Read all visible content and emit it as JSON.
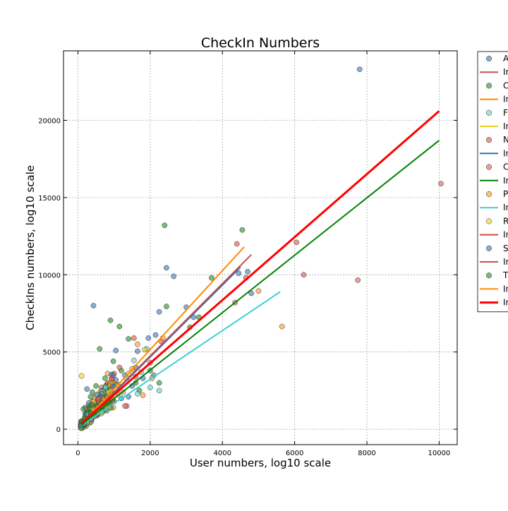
{
  "chart_data": {
    "type": "scatter",
    "title": "CheckIn Numbers",
    "xlabel": "User numbers, log10 scale",
    "ylabel": "CheckIns numbers, log10 scale",
    "xlim": [
      -400,
      10500
    ],
    "ylim": [
      -1000,
      24500
    ],
    "xticks": [
      0,
      2000,
      4000,
      6000,
      8000,
      10000
    ],
    "yticks": [
      0,
      5000,
      10000,
      15000,
      20000
    ],
    "grid": true,
    "legend_position": "upper right, outside plot (clipped)",
    "legend_entries": [
      {
        "label": "A",
        "kind": "marker",
        "color": "#4c7fbf"
      },
      {
        "label": "In",
        "kind": "line",
        "color": "#c8504a"
      },
      {
        "label": "C",
        "kind": "marker",
        "color": "#2e9a2e"
      },
      {
        "label": "In",
        "kind": "line",
        "color": "#ff8c00"
      },
      {
        "label": "Fo",
        "kind": "marker",
        "color": "#6fd6c8"
      },
      {
        "label": "In",
        "kind": "line",
        "color": "#e6d11a"
      },
      {
        "label": "N",
        "kind": "marker",
        "color": "#e0604f"
      },
      {
        "label": "In",
        "kind": "line",
        "color": "#2e6fb0"
      },
      {
        "label": "C",
        "kind": "marker",
        "color": "#d96a6a"
      },
      {
        "label": "In",
        "kind": "line",
        "color": "#008000"
      },
      {
        "label": "P",
        "kind": "marker",
        "color": "#ff9f2e"
      },
      {
        "label": "In",
        "kind": "line",
        "color": "#3fcfcf"
      },
      {
        "label": "R",
        "kind": "marker",
        "color": "#f4d72a"
      },
      {
        "label": "In",
        "kind": "line",
        "color": "#d8473d"
      },
      {
        "label": "S",
        "kind": "marker",
        "color": "#4c7fbf"
      },
      {
        "label": "In",
        "kind": "line",
        "color": "#c8504a"
      },
      {
        "label": "T",
        "kind": "marker",
        "color": "#2e9a2e"
      },
      {
        "label": "In",
        "kind": "line",
        "color": "#ff8c00"
      },
      {
        "label": "In",
        "kind": "line",
        "color": "#ff0000"
      }
    ],
    "fit_lines": [
      {
        "color": "#ff0000",
        "width": 3,
        "x": [
          100,
          10000
        ],
        "y": [
          400,
          20600
        ]
      },
      {
        "color": "#008000",
        "width": 2,
        "x": [
          100,
          10000
        ],
        "y": [
          300,
          18700
        ]
      },
      {
        "color": "#ff8c00",
        "width": 2,
        "x": [
          100,
          4600
        ],
        "y": [
          300,
          11800
        ]
      },
      {
        "color": "#c8504a",
        "width": 2,
        "x": [
          100,
          4800
        ],
        "y": [
          300,
          11300
        ]
      },
      {
        "color": "#2e6fb0",
        "width": 2,
        "x": [
          100,
          4500
        ],
        "y": [
          250,
          10500
        ]
      },
      {
        "color": "#3fcfcf",
        "width": 2,
        "x": [
          100,
          5600
        ],
        "y": [
          250,
          8900
        ]
      }
    ],
    "series": [
      {
        "color": "#4c7fbf",
        "points": [
          [
            7800,
            23300
          ],
          [
            2450,
            10450
          ],
          [
            2650,
            9900
          ],
          [
            4450,
            10100
          ],
          [
            4700,
            10200
          ],
          [
            3000,
            7900
          ],
          [
            2250,
            7600
          ],
          [
            430,
            8000
          ],
          [
            3200,
            7250
          ],
          [
            1950,
            5900
          ],
          [
            2150,
            6100
          ],
          [
            1050,
            5100
          ],
          [
            4800,
            8800
          ],
          [
            1650,
            5050
          ],
          [
            1600,
            4000
          ],
          [
            1300,
            3500
          ],
          [
            900,
            3000
          ],
          [
            700,
            2500
          ],
          [
            500,
            2200
          ],
          [
            300,
            1700
          ],
          [
            200,
            1400
          ],
          [
            250,
            2600
          ],
          [
            1200,
            2000
          ],
          [
            1800,
            3300
          ],
          [
            1050,
            3200
          ],
          [
            1500,
            2800
          ],
          [
            2100,
            3500
          ],
          [
            800,
            1200
          ],
          [
            1400,
            2100
          ],
          [
            300,
            1100
          ],
          [
            600,
            1600
          ]
        ]
      },
      {
        "color": "#2e9a2e",
        "points": [
          [
            2400,
            13200
          ],
          [
            4550,
            12900
          ],
          [
            3700,
            9800
          ],
          [
            900,
            7050
          ],
          [
            1150,
            6650
          ],
          [
            600,
            5200
          ],
          [
            1400,
            5850
          ],
          [
            2450,
            7950
          ],
          [
            980,
            4400
          ],
          [
            1200,
            3800
          ],
          [
            750,
            3300
          ],
          [
            500,
            2800
          ],
          [
            400,
            2400
          ],
          [
            350,
            2100
          ],
          [
            150,
            1300
          ],
          [
            200,
            1000
          ],
          [
            300,
            1500
          ],
          [
            550,
            1900
          ],
          [
            650,
            1400
          ],
          [
            850,
            2600
          ],
          [
            1100,
            2900
          ],
          [
            1600,
            3000
          ],
          [
            2000,
            3800
          ],
          [
            2250,
            3000
          ],
          [
            3100,
            6600
          ],
          [
            3350,
            7250
          ],
          [
            1700,
            2500
          ],
          [
            1000,
            1800
          ],
          [
            450,
            1200
          ],
          [
            250,
            600
          ]
        ]
      },
      {
        "color": "#6fd6c8",
        "points": [
          [
            1550,
            4450
          ],
          [
            1900,
            5200
          ],
          [
            1350,
            3300
          ],
          [
            1000,
            2900
          ],
          [
            700,
            2300
          ],
          [
            2000,
            2700
          ],
          [
            2250,
            2500
          ],
          [
            1650,
            2300
          ],
          [
            1200,
            2000
          ],
          [
            450,
            1500
          ],
          [
            800,
            1800
          ],
          [
            300,
            900
          ],
          [
            550,
            2000
          ],
          [
            1750,
            3700
          ]
        ]
      },
      {
        "color": "#e0604f",
        "points": [
          [
            4400,
            12000
          ],
          [
            6050,
            12100
          ],
          [
            6250,
            10000
          ],
          [
            1550,
            5900
          ],
          [
            2300,
            5700
          ],
          [
            1150,
            4000
          ],
          [
            1000,
            3600
          ],
          [
            800,
            2900
          ],
          [
            600,
            2300
          ],
          [
            400,
            1800
          ],
          [
            250,
            1300
          ],
          [
            1350,
            1500
          ],
          [
            900,
            2200
          ],
          [
            4650,
            9800
          ]
        ]
      },
      {
        "color": "#d96a6a",
        "points": [
          [
            10050,
            15900
          ],
          [
            7750,
            9650
          ],
          [
            4350,
            8200
          ],
          [
            1300,
            1500
          ],
          [
            750,
            1600
          ],
          [
            500,
            1000
          ],
          [
            300,
            700
          ],
          [
            1100,
            2300
          ],
          [
            1600,
            3400
          ],
          [
            2000,
            4300
          ],
          [
            650,
            2700
          ]
        ]
      },
      {
        "color": "#ff9f2e",
        "points": [
          [
            5650,
            6650
          ],
          [
            5000,
            8950
          ],
          [
            1650,
            5500
          ],
          [
            2350,
            5900
          ],
          [
            820,
            3600
          ],
          [
            1800,
            2200
          ],
          [
            2050,
            3300
          ],
          [
            1250,
            2400
          ],
          [
            480,
            2000
          ],
          [
            650,
            1500
          ],
          [
            350,
            900
          ],
          [
            1500,
            3900
          ],
          [
            950,
            3100
          ]
        ]
      },
      {
        "color": "#f4d72a",
        "points": [
          [
            100,
            3450
          ],
          [
            1850,
            5150
          ],
          [
            1400,
            3600
          ],
          [
            600,
            2400
          ],
          [
            300,
            1200
          ],
          [
            800,
            1600
          ],
          [
            1000,
            2200
          ],
          [
            450,
            1800
          ],
          [
            200,
            800
          ],
          [
            1100,
            2800
          ]
        ]
      }
    ]
  }
}
